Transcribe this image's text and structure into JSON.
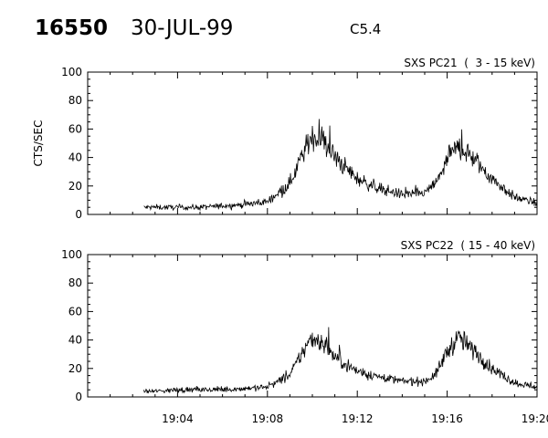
{
  "header": {
    "event_id": "16550",
    "date": "30-JUL-99",
    "flare_class": "C5.4"
  },
  "chart_data": [
    {
      "type": "line",
      "title": "SXS PC21  (  3 - 15 keV)",
      "ylabel": "CTS/SEC",
      "xlabel": "",
      "ylim": [
        0,
        100
      ],
      "yticks": [
        0,
        20,
        40,
        60,
        80,
        100
      ],
      "xlim": [
        "19:00",
        "19:20"
      ],
      "xtick_labels": [],
      "grid": false,
      "x": [
        "19:02:30",
        "19:03:00",
        "19:04:00",
        "19:05:00",
        "19:06:00",
        "19:07:00",
        "19:08:00",
        "19:09:00",
        "19:09:30",
        "19:10:00",
        "19:10:30",
        "19:11:00",
        "19:12:00",
        "19:13:00",
        "19:14:00",
        "19:15:00",
        "19:15:30",
        "19:16:00",
        "19:16:30",
        "19:17:00",
        "19:18:00",
        "19:19:00",
        "19:20:00"
      ],
      "series": [
        {
          "values": [
            5,
            5,
            5,
            5,
            6,
            7,
            9,
            22,
            40,
            55,
            52,
            40,
            25,
            18,
            14,
            15,
            22,
            38,
            48,
            42,
            25,
            12,
            8
          ]
        }
      ]
    },
    {
      "type": "line",
      "title": "SXS PC22  ( 15 - 40 keV)",
      "ylabel": "",
      "xlabel": "",
      "ylim": [
        0,
        100
      ],
      "yticks": [
        0,
        20,
        40,
        60,
        80,
        100
      ],
      "xlim": [
        "19:00",
        "19:20"
      ],
      "xtick_labels": [
        "19:04",
        "19:08",
        "19:12",
        "19:16",
        "19:20"
      ],
      "grid": false,
      "x": [
        "19:02:30",
        "19:03:00",
        "19:04:00",
        "19:05:00",
        "19:06:00",
        "19:07:00",
        "19:08:00",
        "19:09:00",
        "19:09:30",
        "19:10:00",
        "19:10:30",
        "19:11:00",
        "19:12:00",
        "19:13:00",
        "19:14:00",
        "19:15:00",
        "19:15:30",
        "19:16:00",
        "19:16:30",
        "19:17:00",
        "19:18:00",
        "19:19:00",
        "19:20:00"
      ],
      "series": [
        {
          "values": [
            4,
            4,
            5,
            5,
            5,
            6,
            7,
            15,
            30,
            42,
            38,
            28,
            18,
            14,
            11,
            11,
            16,
            32,
            42,
            35,
            20,
            10,
            7
          ]
        }
      ]
    }
  ]
}
